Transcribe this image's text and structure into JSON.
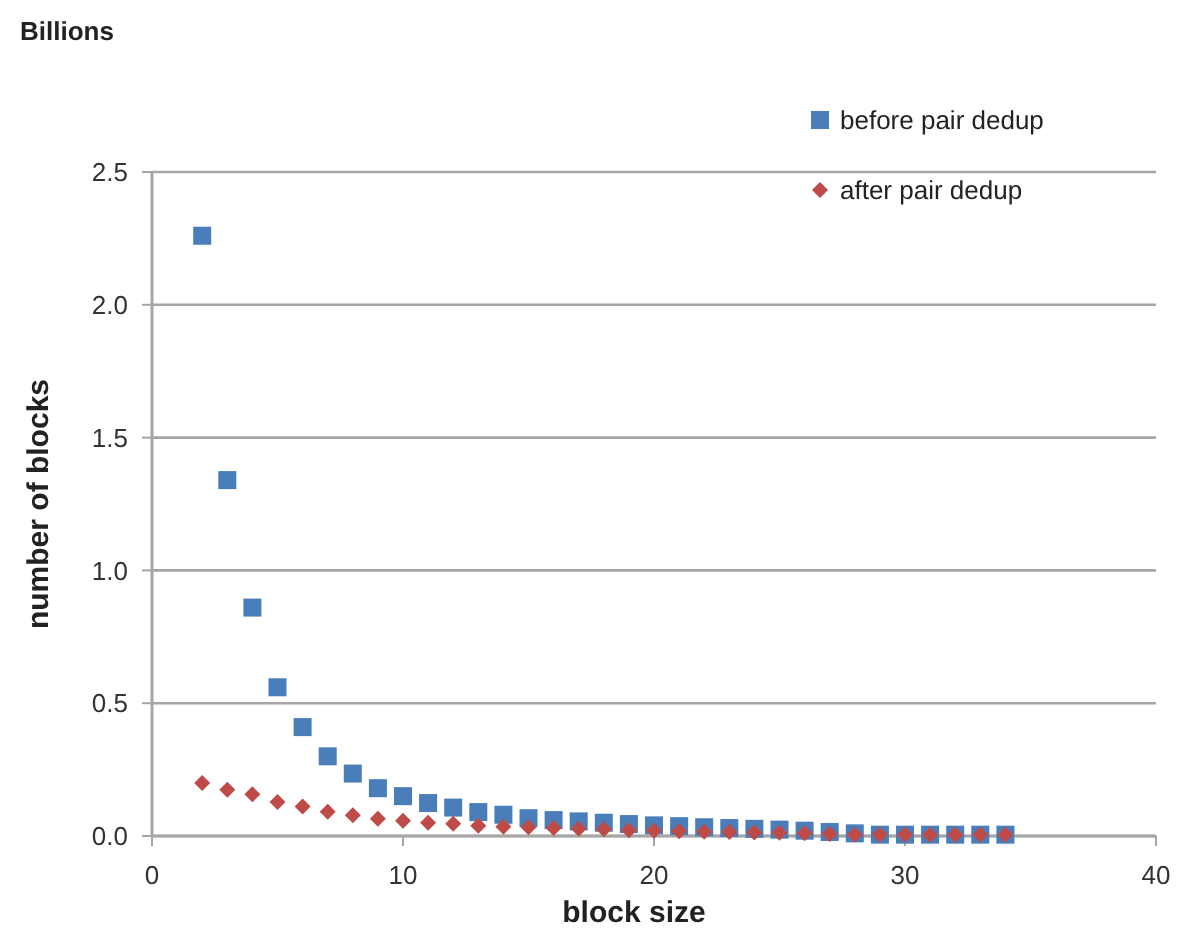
{
  "chart_data": {
    "type": "scatter",
    "xlabel": "block size",
    "ylabel": "number of blocks",
    "annotations": [
      "Billions"
    ],
    "xlim": [
      0,
      40
    ],
    "xticks": [
      0,
      10,
      20,
      30,
      40
    ],
    "ylim": [
      0,
      2.5
    ],
    "yticks": [
      {
        "value": 0,
        "label": "0.0"
      },
      {
        "value": 0.5,
        "label": "0.5"
      },
      {
        "value": 1,
        "label": "1.0"
      },
      {
        "value": 1.5,
        "label": "1.5"
      },
      {
        "value": 2,
        "label": "2.0"
      },
      {
        "value": 2.5,
        "label": "2.5"
      }
    ],
    "grid": "y",
    "legend": "top right",
    "x": [
      2,
      3,
      4,
      5,
      6,
      7,
      8,
      9,
      10,
      11,
      12,
      13,
      14,
      15,
      16,
      17,
      18,
      19,
      20,
      21,
      22,
      23,
      24,
      25,
      26,
      27,
      28,
      29,
      30,
      31,
      32,
      33,
      34
    ],
    "series": [
      {
        "name": "before pair dedup",
        "color": "#4a7ebb",
        "marker": "square",
        "values": [
          2.26,
          1.34,
          0.86,
          0.56,
          0.41,
          0.3,
          0.235,
          0.18,
          0.15,
          0.124,
          0.107,
          0.09,
          0.08,
          0.067,
          0.06,
          0.055,
          0.05,
          0.045,
          0.04,
          0.037,
          0.033,
          0.03,
          0.027,
          0.024,
          0.02,
          0.015,
          0.01,
          0.005,
          0.005,
          0.005,
          0.005,
          0.005,
          0.005
        ]
      },
      {
        "name": "after pair dedup",
        "color": "#be4b48",
        "marker": "diamond",
        "values": [
          0.2,
          0.174,
          0.157,
          0.128,
          0.111,
          0.091,
          0.078,
          0.065,
          0.057,
          0.05,
          0.046,
          0.039,
          0.035,
          0.033,
          0.03,
          0.027,
          0.025,
          0.022,
          0.02,
          0.018,
          0.016,
          0.015,
          0.013,
          0.012,
          0.01,
          0.008,
          0.005,
          0.005,
          0.005,
          0.005,
          0.005,
          0.005,
          0.005
        ]
      }
    ]
  }
}
